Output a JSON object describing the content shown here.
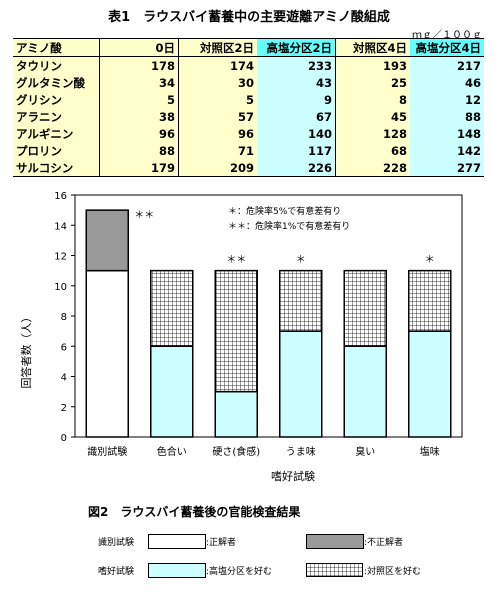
{
  "table_title": "表1　ラウスバイ蓄養中の主要遊離アミノ酸組成",
  "unit": "ｍｇ／１００ｇ",
  "table": {
    "headers": [
      "アミノ酸",
      "0日",
      "対照区2日",
      "高塩分区2日",
      "対照区4日",
      "高塩分区4日"
    ],
    "rows": [
      {
        "name": "タウリン",
        "values": [
          "178",
          "174",
          "233",
          "193",
          "217"
        ]
      },
      {
        "name": "グルタミン酸",
        "values": [
          "34",
          "30",
          "43",
          "25",
          "46"
        ]
      },
      {
        "name": "グリシン",
        "values": [
          "5",
          "5",
          "9",
          "8",
          "12"
        ]
      },
      {
        "name": "アラニン",
        "values": [
          "38",
          "57",
          "67",
          "45",
          "88"
        ]
      },
      {
        "name": "アルギニン",
        "values": [
          "96",
          "96",
          "140",
          "128",
          "148"
        ]
      },
      {
        "name": "プロリン",
        "values": [
          "88",
          "71",
          "117",
          "68",
          "142"
        ]
      },
      {
        "name": "サルコシン",
        "values": [
          "179",
          "209",
          "226",
          "228",
          "277"
        ]
      }
    ]
  },
  "chart_data": {
    "type": "bar",
    "categories": [
      "識別試験",
      "色合い",
      "硬さ(食感)",
      "うま味",
      "臭い",
      "塩味"
    ],
    "series": [
      {
        "name": "正解者",
        "values": [
          11,
          null,
          null,
          null,
          null,
          null
        ],
        "color": "#ffffff"
      },
      {
        "name": "不正解者",
        "values": [
          4,
          null,
          null,
          null,
          null,
          null
        ],
        "color": "#999999"
      },
      {
        "name": "高塩分区を好む",
        "values": [
          null,
          6,
          3,
          7,
          6,
          7
        ],
        "color": "#ccffff"
      },
      {
        "name": "対照区を好む",
        "values": [
          null,
          5,
          8,
          4,
          5,
          4
        ],
        "color": "hatch"
      }
    ],
    "significance": [
      "＊＊",
      "",
      "＊＊",
      "＊",
      "",
      "＊"
    ],
    "ylabel": "回答者数（人）",
    "xlabel": "嗜好試験",
    "ylim": [
      0,
      16
    ],
    "yticks": [
      0,
      2,
      4,
      6,
      8,
      10,
      12,
      14,
      16
    ],
    "annotations": [
      "＊：危険率5%で有意差有り",
      "＊＊：危険率1%で有意差有り"
    ]
  },
  "figure_title": "図2　ラウスバイ蓄養後の官能検査結果",
  "legend": {
    "row1_label": "識別試験",
    "row2_label": "嗜好試験",
    "correct": ":正解者",
    "incorrect": ":不正解者",
    "prefer_high": ":高塩分区を好む",
    "prefer_control": ":対照区を好む"
  }
}
